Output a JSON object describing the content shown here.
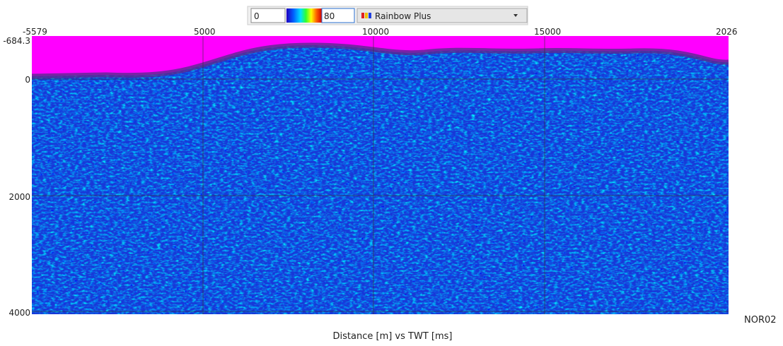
{
  "toolbar": {
    "min": "0",
    "max": "80",
    "colormap": "Rainbow Plus"
  },
  "plot": {
    "x_ticks": [
      "-5579",
      "5000",
      "10000",
      "15000",
      "2026"
    ],
    "y_ticks": [
      "-684.3",
      "0",
      "2000",
      "4000"
    ],
    "line_name": "NOR02",
    "caption": "Distance [m] vs TWT [ms]"
  }
}
